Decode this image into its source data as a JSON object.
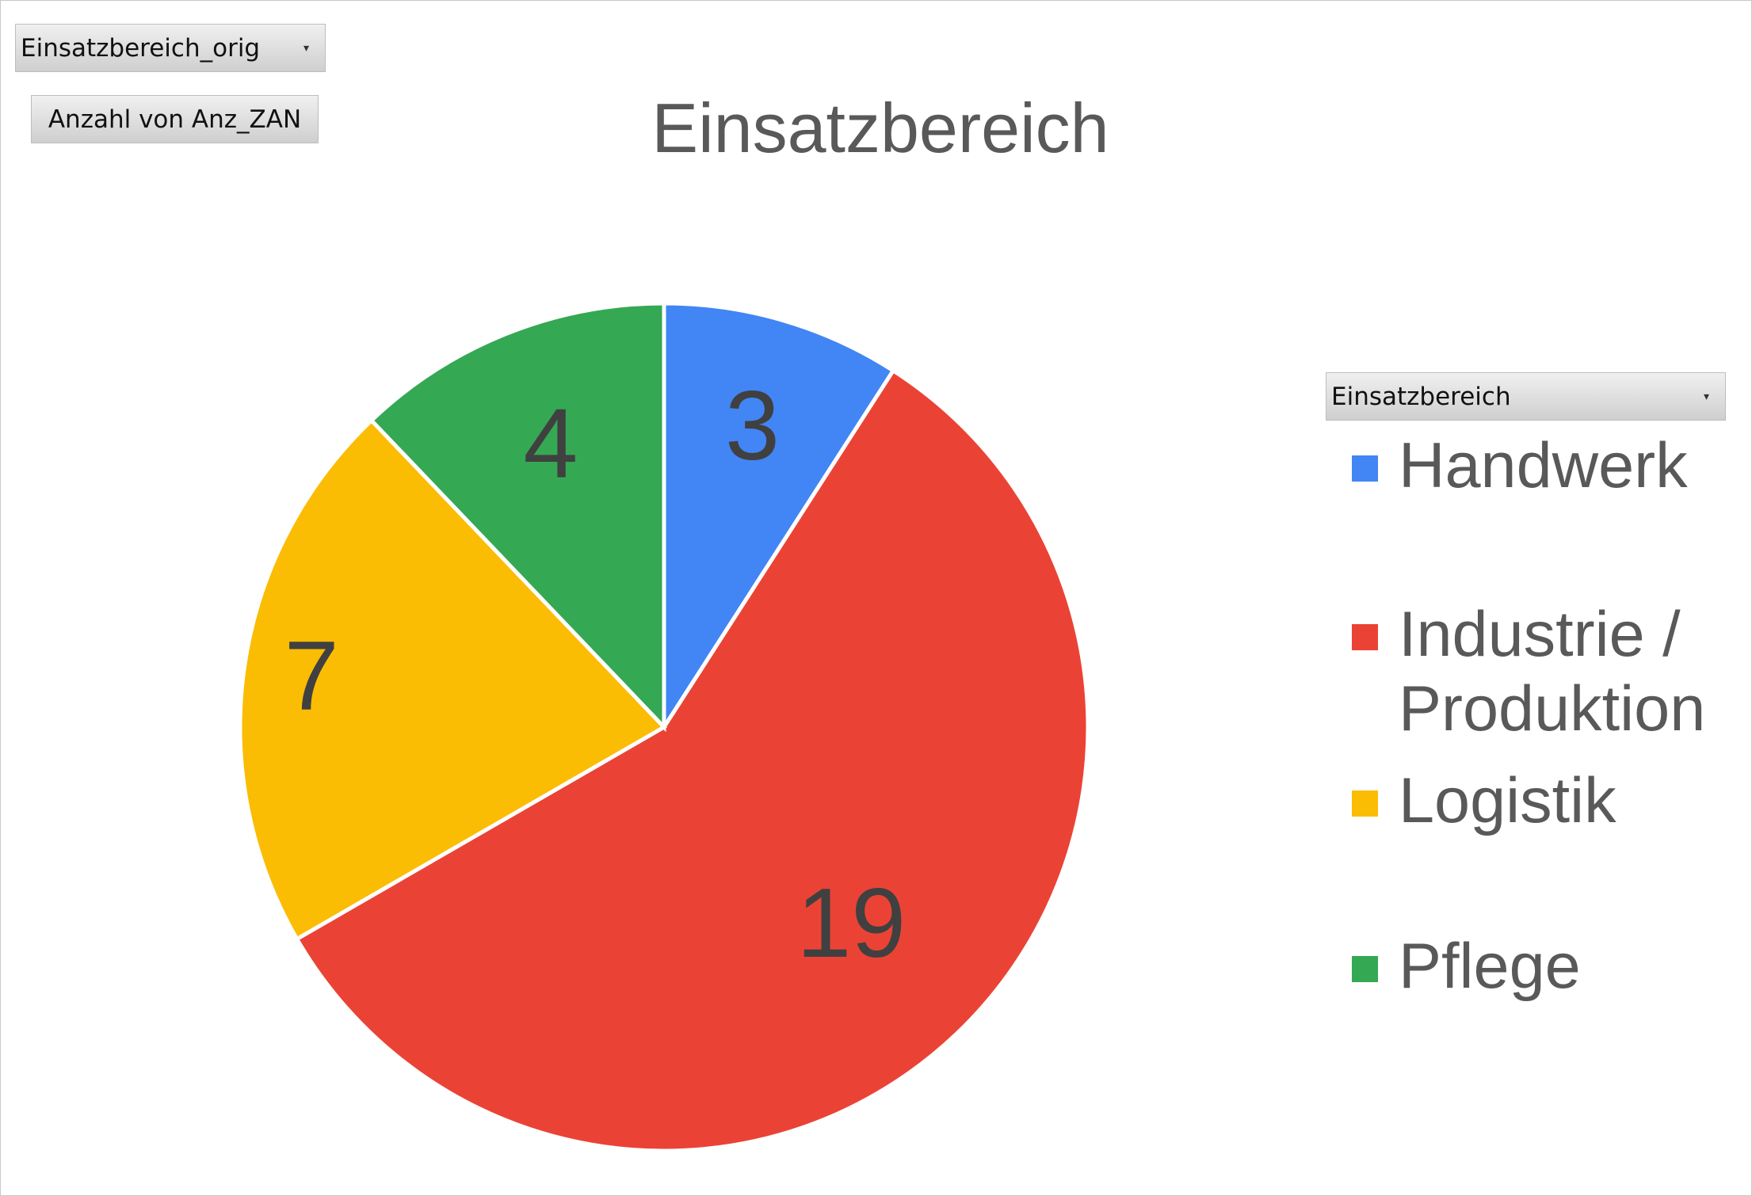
{
  "pivot_fields": {
    "filter_field": "Einsatzbereich_orig",
    "value_field": "Anzahl von Anz_ZAN",
    "legend_field": "Einsatzbereich",
    "dropdown_icon": "chevron-down-icon"
  },
  "chart_data": {
    "type": "pie",
    "title": "Einsatzbereich",
    "categories": [
      "Handwerk",
      "Industrie / Produktion",
      "Logistik",
      "Pflege"
    ],
    "values": [
      3,
      19,
      7,
      4
    ],
    "colors": [
      "#4285F4",
      "#EA4335",
      "#FBBC04",
      "#34A853"
    ],
    "data_labels": [
      "3",
      "19",
      "7",
      "4"
    ],
    "legend_position": "right",
    "legend_entries": [
      {
        "label": "Handwerk",
        "color": "#4285F4"
      },
      {
        "label": "Industrie / Produktion",
        "color": "#EA4335"
      },
      {
        "label": "Logistik",
        "color": "#FBBC04"
      },
      {
        "label": "Pflege",
        "color": "#34A853"
      }
    ]
  }
}
